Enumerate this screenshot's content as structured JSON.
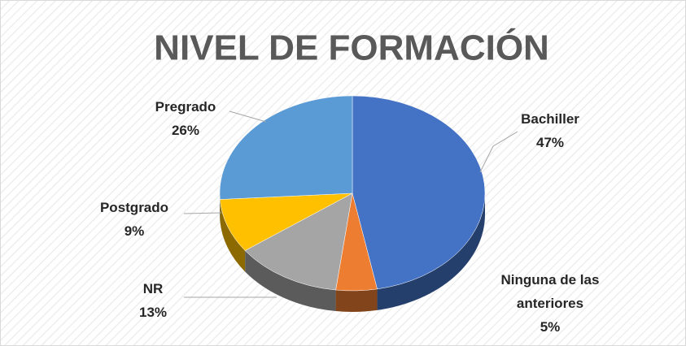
{
  "chart_data": {
    "type": "pie",
    "title": "NIVEL DE FORMACIÓN",
    "categories": [
      "Bachiller",
      "Ninguna de las anteriores",
      "NR",
      "Postgrado",
      "Pregrado"
    ],
    "values": [
      47,
      5,
      13,
      9,
      26
    ],
    "value_labels": [
      "47%",
      "5%",
      "13%",
      "9%",
      "26%"
    ],
    "colors": [
      "#4472c4",
      "#ed7d31",
      "#a5a5a5",
      "#ffc000",
      "#5b9bd5"
    ]
  }
}
